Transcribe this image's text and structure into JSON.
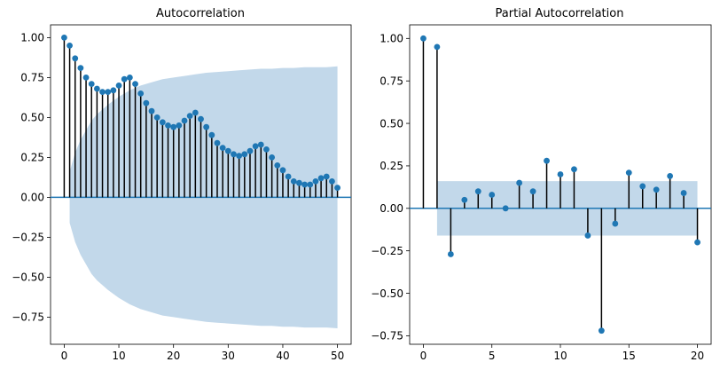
{
  "chart_data": [
    {
      "type": "stem",
      "title": "Autocorrelation",
      "xlabel": "",
      "ylabel": "",
      "xlim": [
        -2.5,
        52.5
      ],
      "ylim": [
        -0.92,
        1.08
      ],
      "xticks": [
        0,
        10,
        20,
        30,
        40,
        50
      ],
      "yticks": [
        -0.75,
        -0.5,
        -0.25,
        0.0,
        0.25,
        0.5,
        0.75,
        1.0
      ],
      "tick_labels": {
        "x": [
          "0",
          "10",
          "20",
          "30",
          "40",
          "50"
        ],
        "y": [
          "−0.75",
          "−0.50",
          "−0.25",
          "0.00",
          "0.25",
          "0.50",
          "0.75",
          "1.00"
        ]
      },
      "x": [
        0,
        1,
        2,
        3,
        4,
        5,
        6,
        7,
        8,
        9,
        10,
        11,
        12,
        13,
        14,
        15,
        16,
        17,
        18,
        19,
        20,
        21,
        22,
        23,
        24,
        25,
        26,
        27,
        28,
        29,
        30,
        31,
        32,
        33,
        34,
        35,
        36,
        37,
        38,
        39,
        40,
        41,
        42,
        43,
        44,
        45,
        46,
        47,
        48,
        49,
        50
      ],
      "values": [
        1.0,
        0.95,
        0.87,
        0.81,
        0.75,
        0.71,
        0.68,
        0.66,
        0.66,
        0.67,
        0.7,
        0.74,
        0.75,
        0.71,
        0.65,
        0.59,
        0.54,
        0.5,
        0.47,
        0.45,
        0.44,
        0.45,
        0.48,
        0.51,
        0.53,
        0.49,
        0.44,
        0.39,
        0.34,
        0.31,
        0.29,
        0.27,
        0.26,
        0.27,
        0.29,
        0.32,
        0.33,
        0.3,
        0.25,
        0.2,
        0.17,
        0.13,
        0.1,
        0.09,
        0.08,
        0.08,
        0.1,
        0.12,
        0.13,
        0.1,
        0.06
      ],
      "confidence_band": {
        "x": [
          1,
          2,
          3,
          4,
          5,
          6,
          8,
          10,
          12,
          14,
          16,
          18,
          20,
          22,
          24,
          26,
          28,
          30,
          32,
          34,
          36,
          38,
          40,
          42,
          44,
          46,
          48,
          50
        ],
        "upper": [
          0.16,
          0.28,
          0.36,
          0.42,
          0.48,
          0.52,
          0.58,
          0.63,
          0.67,
          0.7,
          0.72,
          0.74,
          0.75,
          0.76,
          0.77,
          0.78,
          0.785,
          0.79,
          0.795,
          0.8,
          0.805,
          0.805,
          0.81,
          0.81,
          0.815,
          0.815,
          0.815,
          0.82
        ]
      },
      "grid": false,
      "colors": {
        "marker": "#1f77b4",
        "stem": "#000000",
        "band": "#c2d8ea",
        "zero_line": "#1f77b4"
      }
    },
    {
      "type": "stem",
      "title": "Partial Autocorrelation",
      "xlabel": "",
      "ylabel": "",
      "xlim": [
        -1,
        21
      ],
      "ylim": [
        -0.8,
        1.08
      ],
      "xticks": [
        0,
        5,
        10,
        15,
        20
      ],
      "yticks": [
        -0.75,
        -0.5,
        -0.25,
        0.0,
        0.25,
        0.5,
        0.75,
        1.0
      ],
      "tick_labels": {
        "x": [
          "0",
          "5",
          "10",
          "15",
          "20"
        ],
        "y": [
          "−0.75",
          "−0.50",
          "−0.25",
          "0.00",
          "0.25",
          "0.50",
          "0.75",
          "1.00"
        ]
      },
      "x": [
        0,
        1,
        2,
        3,
        4,
        5,
        6,
        7,
        8,
        9,
        10,
        11,
        12,
        13,
        14,
        15,
        16,
        17,
        18,
        19,
        20
      ],
      "values": [
        1.0,
        0.95,
        -0.27,
        0.05,
        0.1,
        0.08,
        0.0,
        0.15,
        0.1,
        0.28,
        0.2,
        0.23,
        -0.16,
        -0.72,
        -0.09,
        0.21,
        0.13,
        0.11,
        0.19,
        0.09,
        -0.2
      ],
      "confidence_band": {
        "x_start": 1,
        "x_end": 20,
        "bound": 0.16
      },
      "grid": false,
      "colors": {
        "marker": "#1f77b4",
        "stem": "#000000",
        "band": "#c2d8ea",
        "zero_line": "#1f77b4"
      }
    }
  ]
}
